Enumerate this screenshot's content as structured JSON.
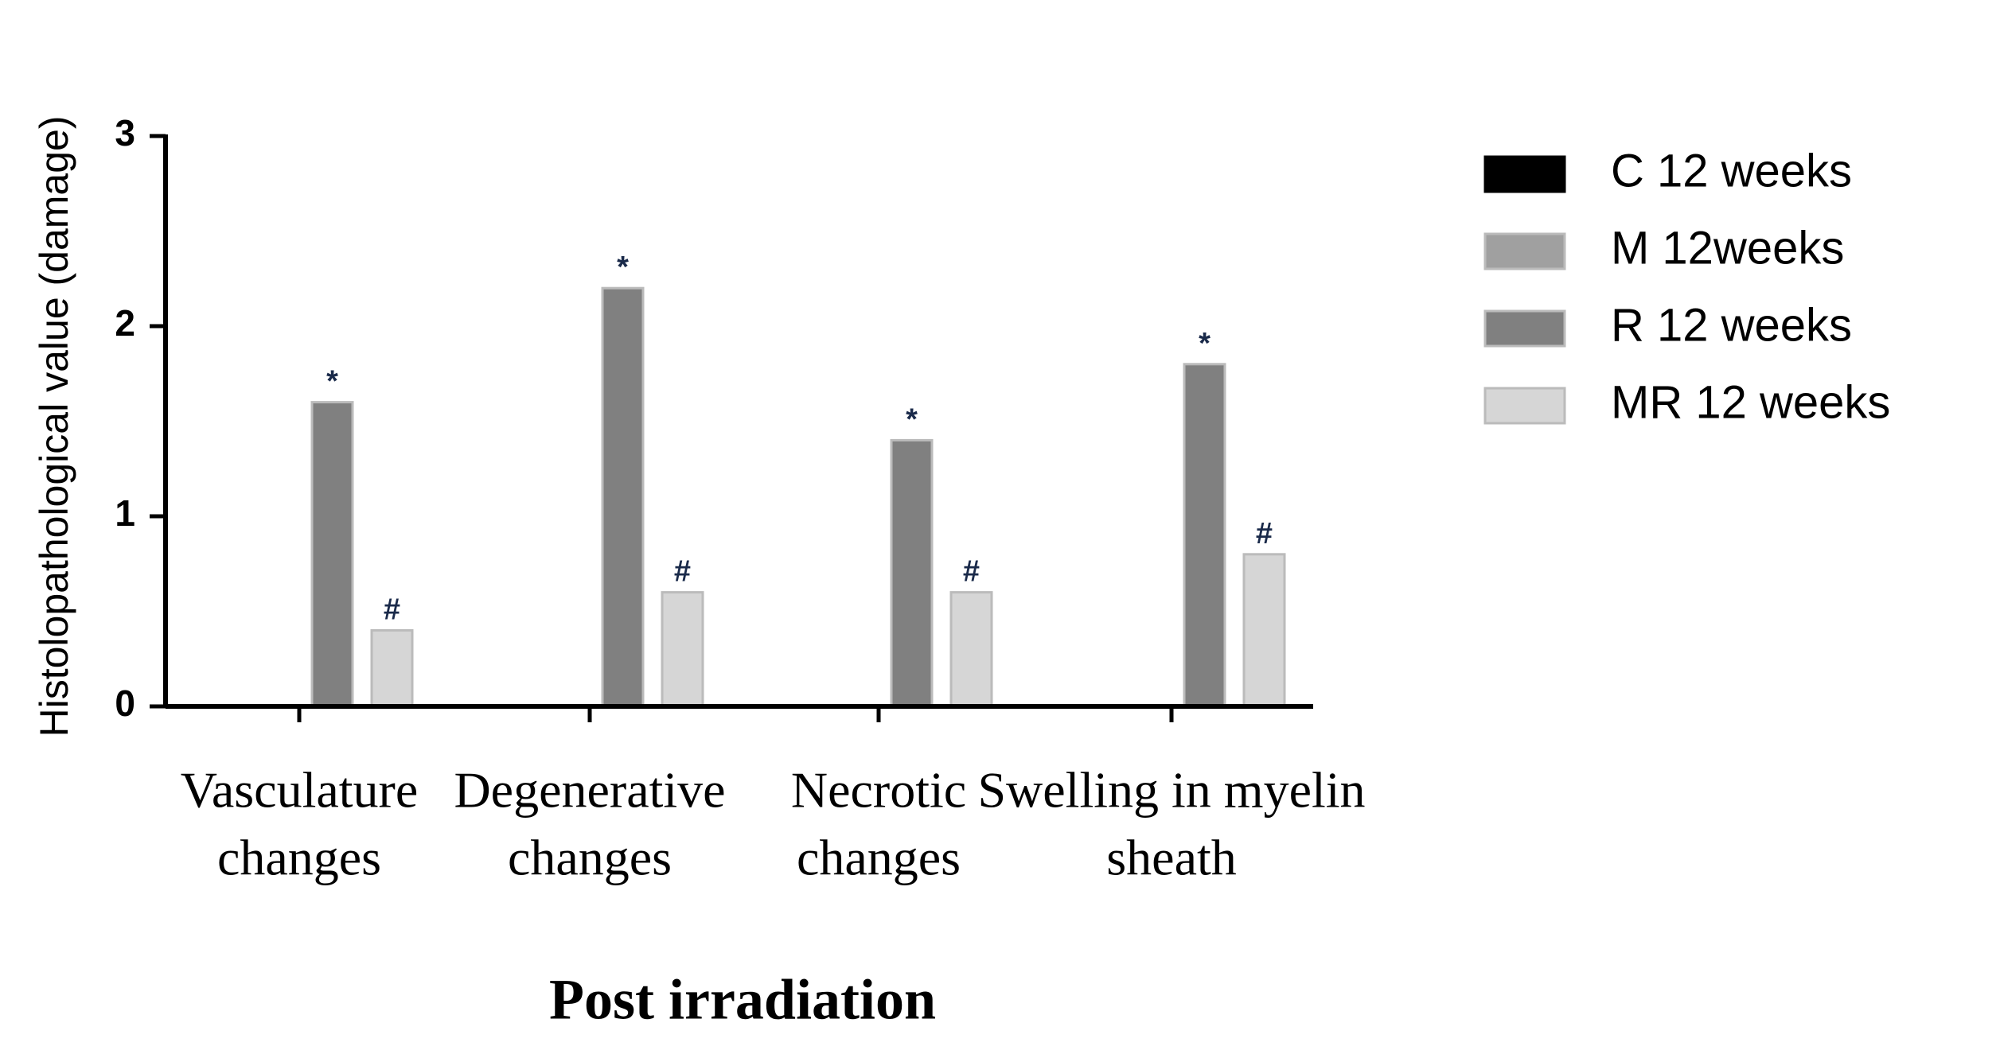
{
  "chart_data": {
    "type": "bar",
    "y_label": "Histolopathological value (damage)",
    "x_label": "Post irradiation",
    "categories": [
      [
        "Vasculature",
        "changes"
      ],
      [
        "Degenerative",
        "changes"
      ],
      [
        "Necrotic",
        "changes"
      ],
      [
        "Swelling in myelin",
        "sheath"
      ]
    ],
    "series": [
      {
        "name": "C 12 weeks",
        "color": "#000000",
        "values": [
          0,
          0,
          0,
          0
        ]
      },
      {
        "name": "M 12weeks",
        "color": "#a0a0a0",
        "values": [
          0,
          0,
          0,
          0
        ]
      },
      {
        "name": "R 12 weeks",
        "color": "#808080",
        "values": [
          1.6,
          2.2,
          1.4,
          1.8
        ],
        "markers": [
          "*",
          "*",
          "*",
          "*"
        ]
      },
      {
        "name": "MR 12 weeks",
        "color": "#d6d6d6",
        "values": [
          0.4,
          0.6,
          0.6,
          0.8
        ],
        "markers": [
          "#",
          "#",
          "#",
          "#"
        ]
      }
    ],
    "ylim": [
      0,
      3
    ],
    "yticks": [
      0,
      1,
      2,
      3
    ],
    "grid": false,
    "legend": "right"
  }
}
